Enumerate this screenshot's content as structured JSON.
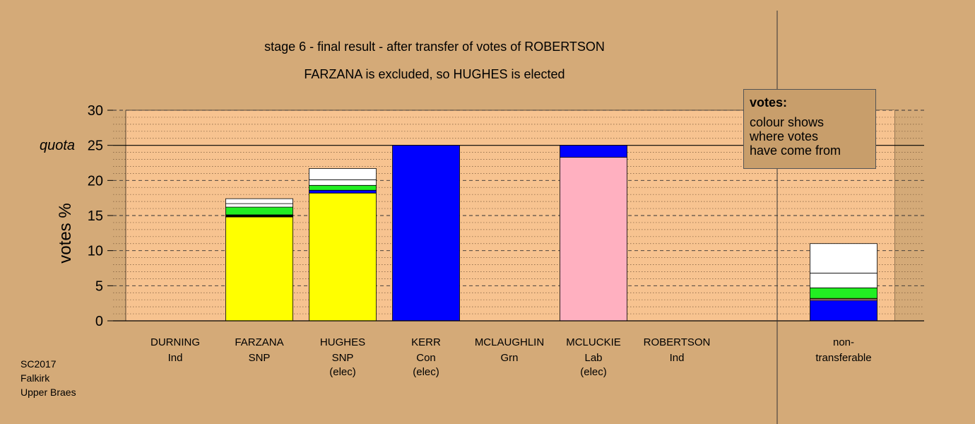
{
  "chart_data": {
    "type": "bar",
    "stacked": true,
    "title": "stage 6 - final result - after transfer of votes of ROBERTSON",
    "subtitle": "FARZANA is excluded, so HUGHES is elected",
    "ylabel": "votes %",
    "ylim": [
      0,
      30
    ],
    "yticks": [
      "0",
      "5",
      "10",
      "15",
      "20",
      "25",
      "30"
    ],
    "quota": 25,
    "quota_label": "quota",
    "grid": true,
    "categories": [
      {
        "name": "DURNING",
        "party": "Ind",
        "status": ""
      },
      {
        "name": "FARZANA",
        "party": "SNP",
        "status": ""
      },
      {
        "name": "HUGHES",
        "party": "SNP",
        "status": "(elec)"
      },
      {
        "name": "KERR",
        "party": "Con",
        "status": "(elec)"
      },
      {
        "name": "MCLAUGHLIN",
        "party": "Grn",
        "status": ""
      },
      {
        "name": "MCLUCKIE",
        "party": "Lab",
        "status": "(elec)"
      },
      {
        "name": "ROBERTSON",
        "party": "Ind",
        "status": ""
      }
    ],
    "stacks": [
      [],
      [
        {
          "color": "#ffff00",
          "value": 14.8
        },
        {
          "color": "#000000",
          "value": 0.3
        },
        {
          "color": "#22ee22",
          "value": 1.1
        },
        {
          "color": "#ffffff",
          "value": 0.5
        },
        {
          "color": "#ffffff",
          "value": 0.7
        }
      ],
      [
        {
          "color": "#ffff00",
          "value": 18.2
        },
        {
          "color": "#0000ff",
          "value": 0.4
        },
        {
          "color": "#22ee22",
          "value": 0.7
        },
        {
          "color": "#ffffff",
          "value": 0.8
        },
        {
          "color": "#ffffff",
          "value": 1.6
        }
      ],
      [
        {
          "color": "#0000ff",
          "value": 25.0
        }
      ],
      [],
      [
        {
          "color": "#ffb0c0",
          "value": 23.3
        },
        {
          "color": "#0000ff",
          "value": 1.7
        }
      ],
      []
    ],
    "extra": {
      "label_line1": "non-",
      "label_line2": "transferable",
      "stack": [
        {
          "color": "#0000ff",
          "value": 2.9
        },
        {
          "color": "#ffb0c0",
          "value": 0.2
        },
        {
          "color": "#ffff00",
          "value": 0.1
        },
        {
          "color": "#22ee22",
          "value": 1.5
        },
        {
          "color": "#ffffff",
          "value": 2.1
        },
        {
          "color": "#ffffff",
          "value": 4.2
        }
      ]
    },
    "legend": {
      "title": "votes:",
      "lines": [
        "colour shows",
        "where votes",
        "have come from"
      ],
      "placement": "top-right"
    },
    "source": [
      "SC2017",
      "Falkirk",
      "Upper Braes"
    ]
  }
}
